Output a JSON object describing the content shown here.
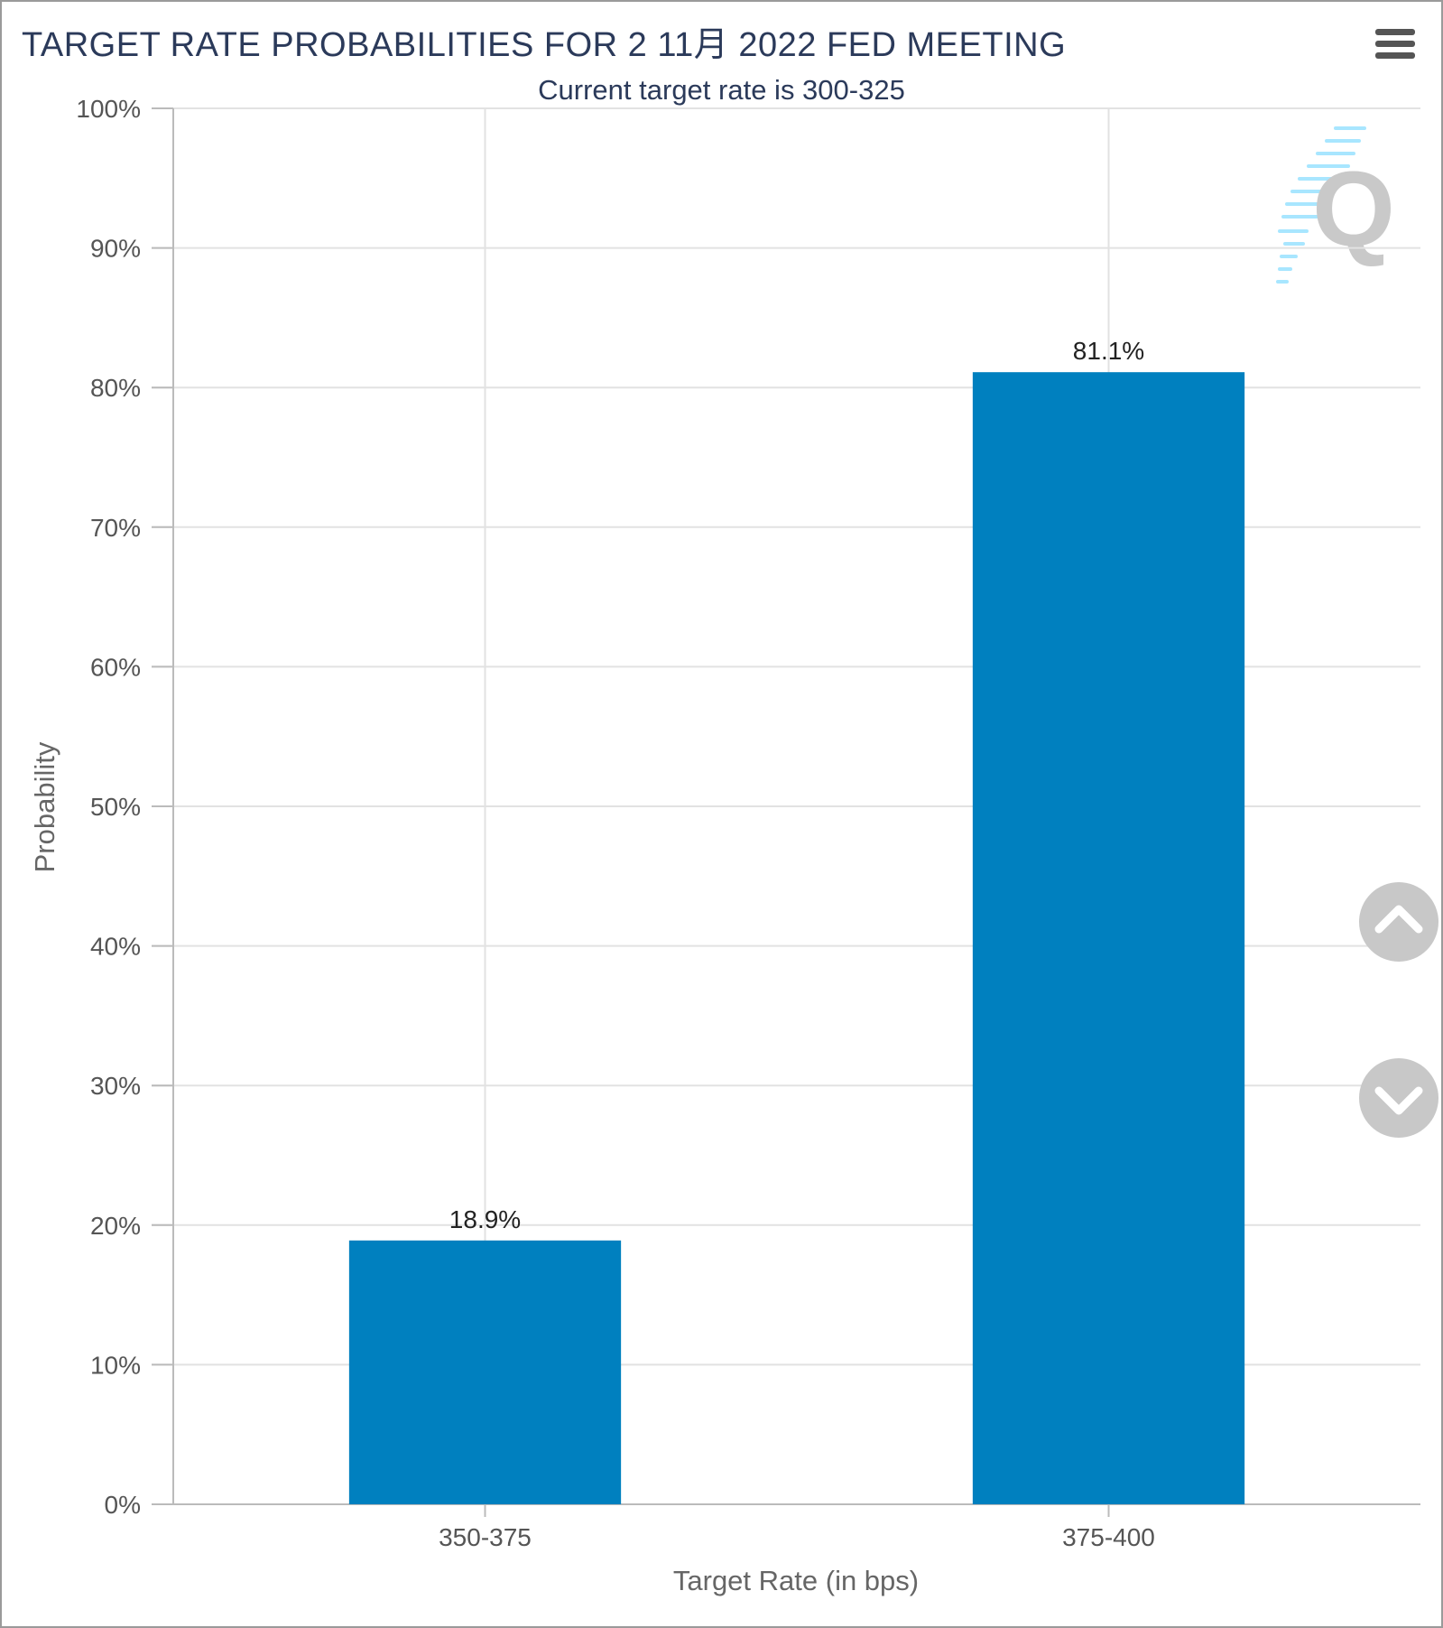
{
  "chart_data": {
    "type": "bar",
    "title": "TARGET RATE PROBABILITIES FOR 2 11月 2022 FED MEETING",
    "subtitle": "Current target rate is 300-325",
    "categories": [
      "350-375",
      "375-400"
    ],
    "values": [
      18.9,
      81.1
    ],
    "data_labels": [
      "18.9%",
      "81.1%"
    ],
    "xlabel": "Target Rate (in bps)",
    "ylabel": "Probability",
    "ylim": [
      0,
      100
    ],
    "yticks": [
      "0%",
      "10%",
      "20%",
      "30%",
      "40%",
      "50%",
      "60%",
      "70%",
      "80%",
      "90%",
      "100%"
    ],
    "grid": true,
    "bar_color": "#0080bf"
  },
  "colors": {
    "grid": "#e2e2e2",
    "axis": "#bbbbbb",
    "title": "#2b3a5a",
    "watermark": "#c9c9c9",
    "watermark_accent": "#a8e6ff"
  },
  "icons": {
    "menu": "hamburger-menu-icon",
    "scroll_up": "chevron-up-icon",
    "scroll_down": "chevron-down-icon",
    "watermark": "q-logo-icon"
  }
}
